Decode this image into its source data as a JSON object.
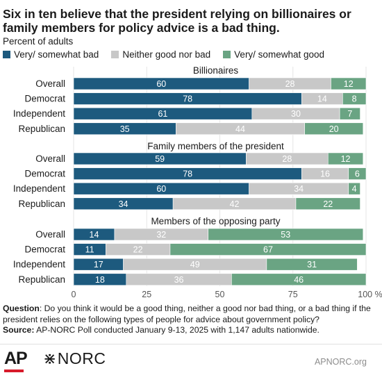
{
  "title": "Six in ten believe that the president relying on billionaires or family members for policy advice is a bad thing.",
  "subtitle": "Percent of adults",
  "legend": [
    {
      "label": "Very/ somewhat bad",
      "color": "#1d5a7e"
    },
    {
      "label": "Neither good nor bad",
      "color": "#c8c8c8"
    },
    {
      "label": "Very/ somewhat good",
      "color": "#6aa483"
    }
  ],
  "chart_data": {
    "type": "bar",
    "orientation": "horizontal",
    "stacked": true,
    "xlim": [
      0,
      100
    ],
    "x_ticks": [
      "0",
      "25",
      "50",
      "75",
      "100 %"
    ],
    "series_names": [
      "Very/ somewhat bad",
      "Neither good nor bad",
      "Very/ somewhat good"
    ],
    "groups": [
      {
        "title": "Billionaires",
        "rows": [
          {
            "label": "Overall",
            "values": [
              60,
              28,
              12
            ]
          },
          {
            "label": "Democrat",
            "values": [
              78,
              14,
              8
            ]
          },
          {
            "label": "Independent",
            "values": [
              61,
              30,
              7
            ]
          },
          {
            "label": "Republican",
            "values": [
              35,
              44,
              20
            ]
          }
        ]
      },
      {
        "title": "Family members of the president",
        "rows": [
          {
            "label": "Overall",
            "values": [
              59,
              28,
              12
            ]
          },
          {
            "label": "Democrat",
            "values": [
              78,
              16,
              6
            ]
          },
          {
            "label": "Independent",
            "values": [
              60,
              34,
              4
            ]
          },
          {
            "label": "Republican",
            "values": [
              34,
              42,
              22
            ]
          }
        ]
      },
      {
        "title": "Members of the opposing party",
        "rows": [
          {
            "label": "Overall",
            "values": [
              14,
              32,
              53
            ]
          },
          {
            "label": "Democrat",
            "values": [
              11,
              22,
              67
            ]
          },
          {
            "label": "Independent",
            "values": [
              17,
              49,
              31
            ]
          },
          {
            "label": "Republican",
            "values": [
              18,
              36,
              46
            ]
          }
        ]
      }
    ]
  },
  "footnote": {
    "question_label": "Question",
    "question_text": ": Do you think it would be a good thing, neither a good nor bad thing, or a bad thing if the president relies on the following types of people for advice about government policy?",
    "source_label": "Source:",
    "source_text": " AP-NORC Poll conducted January 9-13, 2025 with 1,147 adults nationwide."
  },
  "footer": {
    "ap_logo": "AP",
    "norc_star": "⋇",
    "norc_logo": "NORC",
    "site": "APNORC.org"
  }
}
